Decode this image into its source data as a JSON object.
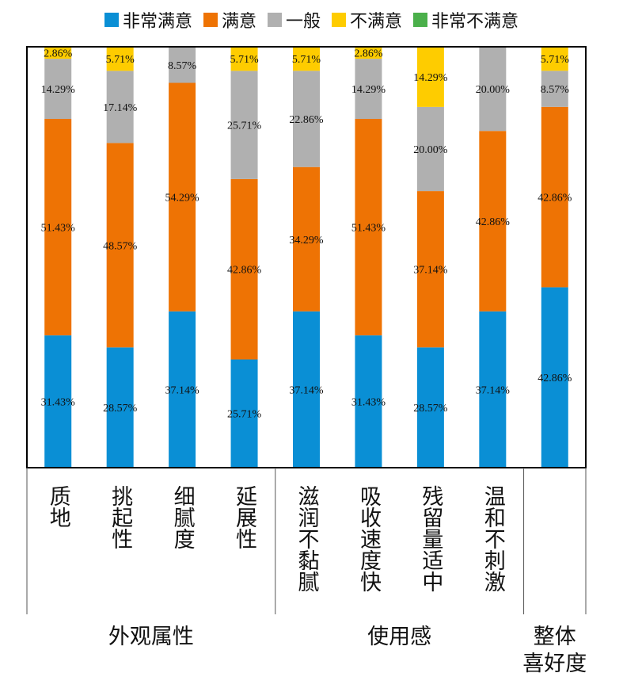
{
  "chart_data": {
    "type": "bar",
    "stacked": true,
    "normalized": true,
    "ylim": [
      0,
      100
    ],
    "legend_position": "top",
    "categories": [
      "质地",
      "挑起性",
      "细腻度",
      "延展性",
      "滋润不黏腻",
      "吸收速度快",
      "残留量适中",
      "温和不刺激",
      ""
    ],
    "groups": [
      {
        "label": "外观属性",
        "span": 4
      },
      {
        "label": "使用感",
        "span": 4
      },
      {
        "label": "整体喜好度",
        "span": 1
      }
    ],
    "series": [
      {
        "name": "非常满意",
        "color": "#0a8fd5",
        "values": [
          31.43,
          28.57,
          37.14,
          25.71,
          37.14,
          31.43,
          28.57,
          37.14,
          42.86
        ],
        "labels": [
          "31.43%",
          "28.57%",
          "37.14%",
          "25.71%",
          "37.14%",
          "31.43%",
          "28.57%",
          "37.14%",
          "42.86%"
        ]
      },
      {
        "name": "满意",
        "color": "#ee7304",
        "values": [
          51.43,
          48.57,
          54.29,
          42.86,
          34.29,
          51.43,
          37.14,
          42.86,
          42.86
        ],
        "labels": [
          "51.43%",
          "48.57%",
          "54.29%",
          "42.86%",
          "34.29%",
          "51.43%",
          "37.14%",
          "42.86%",
          "42.86%"
        ]
      },
      {
        "name": "一般",
        "color": "#b0b0b0",
        "values": [
          14.29,
          17.14,
          8.57,
          25.71,
          22.86,
          14.29,
          20.0,
          20.0,
          8.57
        ],
        "labels": [
          "14.29%",
          "17.14%",
          "8.57%",
          "25.71%",
          "22.86%",
          "14.29%",
          "20.00%",
          "20.00%",
          "8.57%"
        ]
      },
      {
        "name": "不满意",
        "color": "#fecc00",
        "values": [
          2.86,
          5.71,
          0,
          5.71,
          5.71,
          2.86,
          14.29,
          0,
          5.71
        ],
        "labels": [
          "2.86%",
          "5.71%",
          "",
          "5.71%",
          "5.71%",
          "2.86%",
          "14.29%",
          "",
          "5.71%"
        ]
      },
      {
        "name": "非常不满意",
        "color": "#4bb04b",
        "values": [
          0,
          0,
          0,
          0,
          0,
          0,
          0.5,
          0,
          0
        ],
        "labels": [
          "",
          "",
          "",
          "",
          "",
          "",
          "",
          "",
          ""
        ]
      }
    ]
  }
}
